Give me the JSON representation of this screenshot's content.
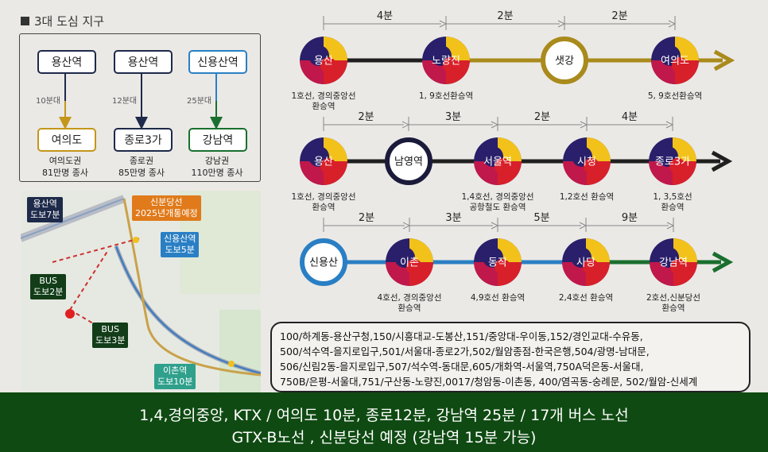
{
  "heading": "3대 도심 지구",
  "areas": [
    {
      "from": "용산역",
      "time": "10분대",
      "to": "여의도",
      "desc1": "여의도권",
      "desc2": "81만명 종사",
      "color": "#c4961a"
    },
    {
      "from": "용산역",
      "time": "12분대",
      "to": "종로3가",
      "desc1": "종로권",
      "desc2": "85만명 종사",
      "color": "#1e2a4a"
    },
    {
      "from": "신용산역",
      "time": "25분대",
      "to": "강남역",
      "desc1": "강남권",
      "desc2": "110만명 종사",
      "color": "#1a6f2e"
    }
  ],
  "map": {
    "callouts": [
      {
        "text": "용산역\n도보7분"
      },
      {
        "text": "신분당선\n2025년개통예정"
      },
      {
        "text": "신용산역\n도보5분"
      },
      {
        "text": "BUS\n도보2분"
      },
      {
        "text": "BUS\n도보3분"
      },
      {
        "text": "이촌역\n도보10분"
      }
    ]
  },
  "routes": [
    {
      "times": [
        "4분",
        "2분",
        "2분"
      ],
      "stations": [
        {
          "name": "용산",
          "note1": "1호선, 경의중앙선",
          "note2": "환승역",
          "type": "taegeuk"
        },
        {
          "name": "노량진",
          "note1": "1, 9호선환승역",
          "note2": "",
          "type": "taegeuk"
        },
        {
          "name": "샛강",
          "note1": "",
          "note2": "",
          "type": "ring"
        },
        {
          "name": "여의도",
          "note1": "5, 9호선환승역",
          "note2": "",
          "type": "taegeuk"
        }
      ],
      "colors": [
        "#1f1f1f",
        "#a98a1c",
        "#a98a1c"
      ],
      "arrow_color": "#a98a1c",
      "ring_color": "#a98a1c"
    },
    {
      "times": [
        "2분",
        "3분",
        "2분",
        "4분"
      ],
      "stations": [
        {
          "name": "용산",
          "note1": "1호선, 경의중앙선",
          "note2": "환승역",
          "type": "taegeuk"
        },
        {
          "name": "남영역",
          "note1": "",
          "note2": "",
          "type": "ring"
        },
        {
          "name": "서울역",
          "note1": "1,4호선, 경의중앙선",
          "note2": "공항철도 환승역",
          "type": "taegeuk"
        },
        {
          "name": "시청",
          "note1": "1,2호선 환승역",
          "note2": "",
          "type": "taegeuk"
        },
        {
          "name": "종로3가",
          "note1": "1, 3,5호선",
          "note2": "환승역",
          "type": "taegeuk"
        }
      ],
      "colors": [
        "#1f1f1f",
        "#1f1f1f",
        "#1f1f1f",
        "#1f1f1f"
      ],
      "arrow_color": "#1f1f1f",
      "ring_color": "#1a1a3a"
    },
    {
      "times": [
        "2분",
        "3분",
        "5분",
        "9분"
      ],
      "stations": [
        {
          "name": "신용산",
          "note1": "",
          "note2": "",
          "type": "ring"
        },
        {
          "name": "이촌",
          "note1": "4호선, 경의중앙선",
          "note2": "환승역",
          "type": "taegeuk"
        },
        {
          "name": "동작",
          "note1": "4,9호선 환승역",
          "note2": "",
          "type": "taegeuk"
        },
        {
          "name": "사당",
          "note1": "2,4호선 환승역",
          "note2": "",
          "type": "taegeuk"
        },
        {
          "name": "강남역",
          "note1": "2호선,신분당선",
          "note2": "환승역",
          "type": "taegeuk"
        }
      ],
      "colors": [
        "#2a7fc4",
        "#2a7fc4",
        "#2a7fc4",
        "#1a6f2e"
      ],
      "arrow_color": "#1a6f2e",
      "ring_color": "#2a7fc4"
    }
  ],
  "bus_lines": [
    "100/하계동-용산구청,150/시흥대교-도봉산,151/중앙대-우이동,152/경인교대-수유동,",
    "500/석수역-을지로입구,501/서울대-종로2가,502/월암종점-한국은행,504/광명-남대문,",
    "506/신림2동-을지로입구,507/석수역-동대문,605/개화역-서울역,750A덕은동-서울대,",
    "750B/은평-서울대,751/구산동-노량진,0017/청암동-이촌동, 400/염곡동-숭례문, 502/월암-신세계"
  ],
  "footer": {
    "line1": "1,4,경의중앙, KTX / 여의도 10분, 종로12분, 강남역 25분 / 17개 버스 노선",
    "line2": "GTX-B노선 , 신분당선 예정 (강남역 15분 가능)"
  }
}
